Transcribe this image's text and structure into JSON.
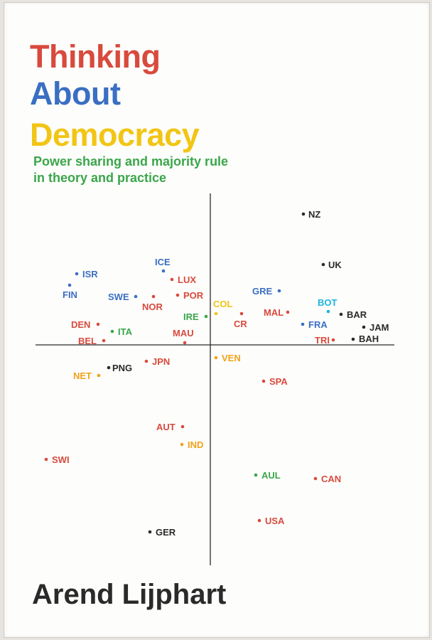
{
  "book": {
    "title_line1": "Thinking",
    "title_line2": "About",
    "title_line3": "Democracy",
    "subtitle_line1": "Power sharing and majority rule",
    "subtitle_line2": "in theory and practice",
    "author": "Arend Lijphart"
  },
  "colors": {
    "red": "#d84a3d",
    "blue": "#3a6fc3",
    "yellow": "#f2c515",
    "green": "#3aa64a",
    "black": "#2a2a2a",
    "cyan": "#1fb3e0",
    "orange": "#f0a21c"
  },
  "countries": [
    {
      "code": "NZ",
      "color": "black"
    },
    {
      "code": "UK",
      "color": "black"
    },
    {
      "code": "ISR",
      "color": "blue"
    },
    {
      "code": "FIN",
      "color": "blue"
    },
    {
      "code": "ICE",
      "color": "blue"
    },
    {
      "code": "LUX",
      "color": "red"
    },
    {
      "code": "POR",
      "color": "red"
    },
    {
      "code": "SWE",
      "color": "blue"
    },
    {
      "code": "NOR",
      "color": "red"
    },
    {
      "code": "GRE",
      "color": "blue"
    },
    {
      "code": "BOT",
      "color": "cyan"
    },
    {
      "code": "COL",
      "color": "yellow"
    },
    {
      "code": "IRE",
      "color": "green"
    },
    {
      "code": "CR",
      "color": "red"
    },
    {
      "code": "MAL",
      "color": "red"
    },
    {
      "code": "BAR",
      "color": "black"
    },
    {
      "code": "FRA",
      "color": "blue"
    },
    {
      "code": "JAM",
      "color": "black"
    },
    {
      "code": "DEN",
      "color": "red"
    },
    {
      "code": "ITA",
      "color": "green"
    },
    {
      "code": "MAU",
      "color": "red"
    },
    {
      "code": "TRI",
      "color": "red"
    },
    {
      "code": "BAH",
      "color": "black"
    },
    {
      "code": "BEL",
      "color": "red"
    },
    {
      "code": "PNG",
      "color": "black"
    },
    {
      "code": "JPN",
      "color": "red"
    },
    {
      "code": "VEN",
      "color": "orange"
    },
    {
      "code": "NET",
      "color": "orange"
    },
    {
      "code": "SPA",
      "color": "red"
    },
    {
      "code": "AUT",
      "color": "red"
    },
    {
      "code": "IND",
      "color": "orange"
    },
    {
      "code": "SWI",
      "color": "red"
    },
    {
      "code": "AUL",
      "color": "green"
    },
    {
      "code": "CAN",
      "color": "red"
    },
    {
      "code": "USA",
      "color": "red"
    },
    {
      "code": "GER",
      "color": "black"
    }
  ]
}
